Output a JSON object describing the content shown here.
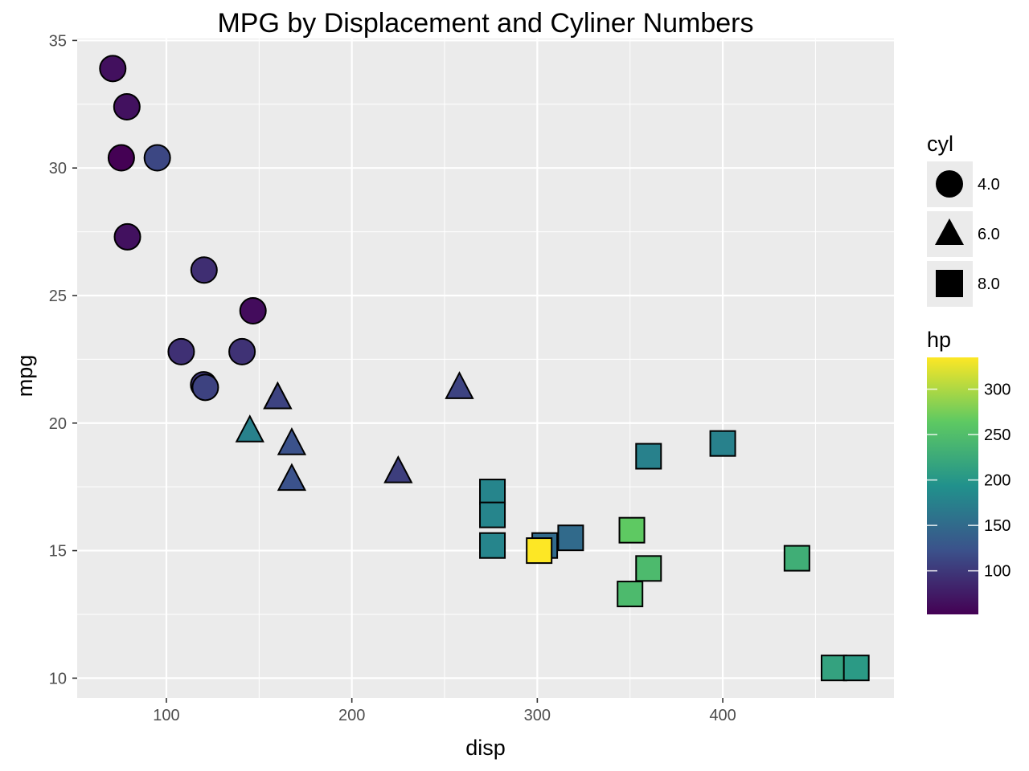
{
  "chart_data": {
    "type": "scatter",
    "title": "MPG  by Displacement and Cyliner Numbers",
    "xlabel": "disp",
    "ylabel": "mpg",
    "xlim": [
      51.9,
      492.3
    ],
    "ylim": [
      9.225,
      35.075
    ],
    "x_ticks": [
      100,
      200,
      300,
      400
    ],
    "y_ticks": [
      10,
      15,
      20,
      25,
      30,
      35
    ],
    "grid": true,
    "legend_placement": "right",
    "shape_legend": {
      "title": "cyl",
      "entries": [
        {
          "label": "4.0",
          "shape": "circle"
        },
        {
          "label": "6.0",
          "shape": "triangle"
        },
        {
          "label": "8.0",
          "shape": "square"
        }
      ]
    },
    "color_legend": {
      "title": "hp",
      "range": [
        52,
        335
      ],
      "ticks": [
        100,
        150,
        200,
        250,
        300
      ],
      "colormap": [
        "#440154",
        "#3b528b",
        "#21918c",
        "#5ec962",
        "#fde725"
      ]
    },
    "points": [
      {
        "disp": 71.1,
        "mpg": 33.9,
        "cyl": 4,
        "hp": 65
      },
      {
        "disp": 78.7,
        "mpg": 32.4,
        "cyl": 4,
        "hp": 66
      },
      {
        "disp": 75.7,
        "mpg": 30.4,
        "cyl": 4,
        "hp": 52
      },
      {
        "disp": 95.1,
        "mpg": 30.4,
        "cyl": 4,
        "hp": 113
      },
      {
        "disp": 79.0,
        "mpg": 27.3,
        "cyl": 4,
        "hp": 66
      },
      {
        "disp": 120.3,
        "mpg": 26.0,
        "cyl": 4,
        "hp": 91
      },
      {
        "disp": 146.7,
        "mpg": 24.4,
        "cyl": 4,
        "hp": 62
      },
      {
        "disp": 108.0,
        "mpg": 22.8,
        "cyl": 4,
        "hp": 93
      },
      {
        "disp": 140.8,
        "mpg": 22.8,
        "cyl": 4,
        "hp": 95
      },
      {
        "disp": 120.1,
        "mpg": 21.5,
        "cyl": 4,
        "hp": 97
      },
      {
        "disp": 121.0,
        "mpg": 21.4,
        "cyl": 4,
        "hp": 109
      },
      {
        "disp": 160.0,
        "mpg": 21.0,
        "cyl": 6,
        "hp": 110
      },
      {
        "disp": 160.0,
        "mpg": 21.0,
        "cyl": 6,
        "hp": 110
      },
      {
        "disp": 258.0,
        "mpg": 21.4,
        "cyl": 6,
        "hp": 110
      },
      {
        "disp": 145.0,
        "mpg": 19.7,
        "cyl": 6,
        "hp": 175
      },
      {
        "disp": 167.6,
        "mpg": 19.2,
        "cyl": 6,
        "hp": 123
      },
      {
        "disp": 167.6,
        "mpg": 17.8,
        "cyl": 6,
        "hp": 123
      },
      {
        "disp": 225.0,
        "mpg": 18.1,
        "cyl": 6,
        "hp": 105
      },
      {
        "disp": 275.8,
        "mpg": 17.3,
        "cyl": 8,
        "hp": 180
      },
      {
        "disp": 275.8,
        "mpg": 16.4,
        "cyl": 8,
        "hp": 180
      },
      {
        "disp": 275.8,
        "mpg": 15.2,
        "cyl": 8,
        "hp": 180
      },
      {
        "disp": 304.0,
        "mpg": 15.2,
        "cyl": 8,
        "hp": 150
      },
      {
        "disp": 318.0,
        "mpg": 15.5,
        "cyl": 8,
        "hp": 150
      },
      {
        "disp": 301.0,
        "mpg": 15.0,
        "cyl": 8,
        "hp": 335
      },
      {
        "disp": 360.0,
        "mpg": 18.7,
        "cyl": 8,
        "hp": 175
      },
      {
        "disp": 400.0,
        "mpg": 19.2,
        "cyl": 8,
        "hp": 175
      },
      {
        "disp": 351.0,
        "mpg": 15.8,
        "cyl": 8,
        "hp": 264
      },
      {
        "disp": 360.0,
        "mpg": 14.3,
        "cyl": 8,
        "hp": 245
      },
      {
        "disp": 350.0,
        "mpg": 13.3,
        "cyl": 8,
        "hp": 245
      },
      {
        "disp": 440.0,
        "mpg": 14.7,
        "cyl": 8,
        "hp": 230
      },
      {
        "disp": 460.0,
        "mpg": 10.4,
        "cyl": 8,
        "hp": 215
      },
      {
        "disp": 472.0,
        "mpg": 10.4,
        "cyl": 8,
        "hp": 205
      }
    ]
  }
}
